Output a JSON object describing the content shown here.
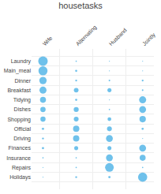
{
  "chart_data": {
    "type": "bubble",
    "title": "housetasks",
    "categories": [
      "Wife",
      "Alternating",
      "Husband",
      "Jointly"
    ],
    "rows": [
      "Laundry",
      "Main_meal",
      "Dinner",
      "Breakfast",
      "Tidying",
      "Dishes",
      "Shopping",
      "Official",
      "Driving",
      "Finances",
      "Insurance",
      "Repairs",
      "Holidays"
    ],
    "sizes": [
      [
        500,
        10,
        5,
        5
      ],
      [
        460,
        25,
        5,
        5
      ],
      [
        300,
        20,
        15,
        20
      ],
      [
        280,
        120,
        90,
        15
      ],
      [
        200,
        25,
        5,
        280
      ],
      [
        160,
        140,
        10,
        260
      ],
      [
        150,
        130,
        80,
        230
      ],
      [
        30,
        220,
        130,
        25
      ],
      [
        20,
        220,
        260,
        5
      ],
      [
        30,
        90,
        90,
        260
      ],
      [
        10,
        10,
        260,
        200
      ],
      [
        5,
        10,
        420,
        10
      ],
      [
        5,
        20,
        30,
        470
      ]
    ],
    "color": "#5BB8E8",
    "grid": true
  }
}
